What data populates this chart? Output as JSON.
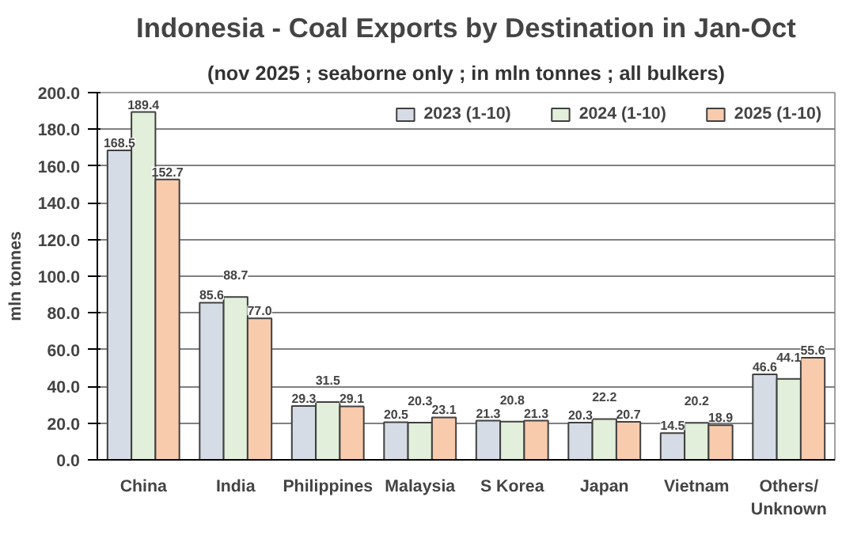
{
  "chart_data": {
    "type": "bar",
    "title": "Indonesia - Coal Exports by Destination in Jan-Oct",
    "subtitle": "(nov 2025 ; seaborne only ; in mln tonnes ; all bulkers)",
    "ylabel": "mln tonnes",
    "categories": [
      "China",
      "India",
      "Philippines",
      "Malaysia",
      "S Korea",
      "Japan",
      "Vietnam",
      "Others/\nUnknown"
    ],
    "series": [
      {
        "name": "2023 (1-10)",
        "color": "#d6dce5",
        "values": [
          168.5,
          85.6,
          29.3,
          20.5,
          21.3,
          20.3,
          14.5,
          46.6
        ],
        "value_labels": [
          "168.5",
          "85.6",
          "29.3",
          "20.5",
          "21.3",
          "20.3",
          "14.5",
          "46.6"
        ]
      },
      {
        "name": "2024 (1-10)",
        "color": "#e2efda",
        "values": [
          189.4,
          88.7,
          31.5,
          20.3,
          20.8,
          22.2,
          20.2,
          44.1
        ],
        "value_labels": [
          "189.4",
          "88.7",
          "31.5",
          "20.3",
          "20.8",
          "22.2",
          "20.2",
          "44.1"
        ]
      },
      {
        "name": "2025 (1-10)",
        "color": "#f8cbad",
        "values": [
          152.7,
          77.0,
          29.1,
          23.1,
          21.3,
          20.7,
          18.9,
          55.6
        ],
        "value_labels": [
          "152.7",
          "77.0",
          "29.1",
          "23.1",
          "21.3",
          "20.7",
          "18.9",
          "55.6"
        ]
      }
    ],
    "ylim": [
      0,
      200
    ],
    "yticks": [
      {
        "value": 0,
        "label": "0.0"
      },
      {
        "value": 20,
        "label": "20.0"
      },
      {
        "value": 40,
        "label": "40.0"
      },
      {
        "value": 60,
        "label": "60.0"
      },
      {
        "value": 80,
        "label": "80.0"
      },
      {
        "value": 100,
        "label": "100.0"
      },
      {
        "value": 120,
        "label": "120.0"
      },
      {
        "value": 140,
        "label": "140.0"
      },
      {
        "value": 160,
        "label": "160.0"
      },
      {
        "value": 180,
        "label": "180.0"
      },
      {
        "value": 200,
        "label": "200.0"
      }
    ],
    "grid": "y",
    "legend": "top right"
  }
}
